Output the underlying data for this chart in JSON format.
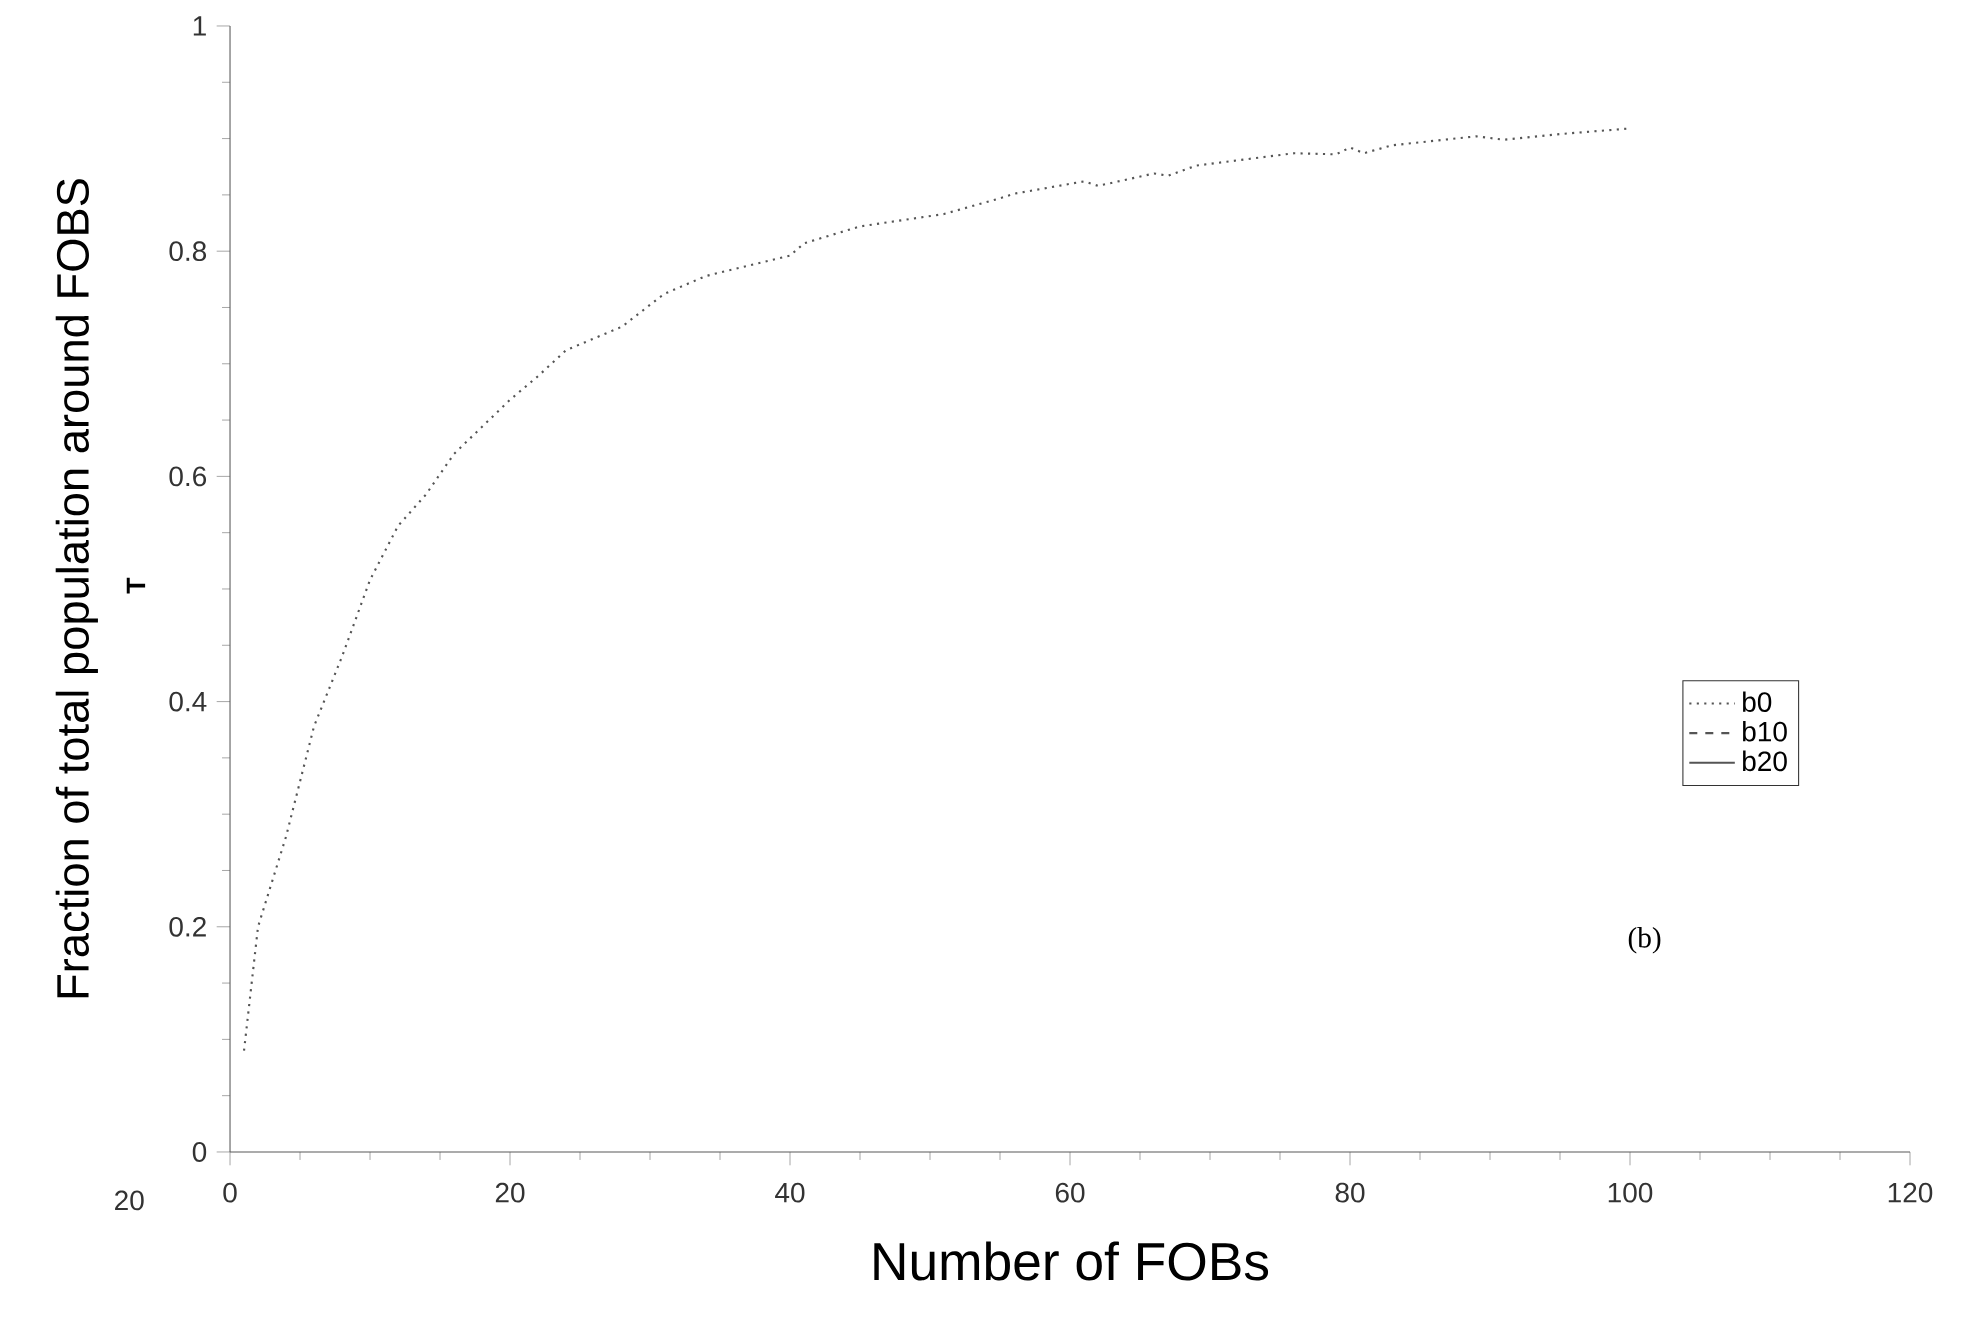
{
  "chart_data": {
    "type": "line",
    "xlabel": "Number of FOBs",
    "ylabel": "Fraction of total population around FOBS",
    "annotations": [
      "T",
      "20",
      "(b)"
    ],
    "x": [
      1,
      2,
      4,
      6,
      8,
      10,
      12,
      14,
      16,
      20,
      22,
      24,
      28,
      31,
      34,
      40,
      41,
      45,
      51,
      55,
      56,
      61,
      62,
      66,
      67,
      69,
      76,
      79,
      80,
      81,
      83,
      89,
      91,
      95,
      100
    ],
    "series": [
      {
        "name": "b0",
        "color": "#555555",
        "line_style": "dotted",
        "values": [
          0.09,
          0.2,
          0.28,
          0.378,
          0.44,
          0.508,
          0.556,
          0.584,
          0.62,
          0.668,
          0.689,
          0.712,
          0.733,
          0.762,
          0.778,
          0.796,
          0.807,
          0.822,
          0.833,
          0.847,
          0.851,
          0.862,
          0.858,
          0.869,
          0.867,
          0.876,
          0.887,
          0.886,
          0.892,
          0.887,
          0.894,
          0.902,
          0.899,
          0.904,
          0.909
        ]
      },
      {
        "name": "b10",
        "color": "#555555",
        "line_style": "dashed",
        "values": [
          null,
          null,
          null,
          null,
          null,
          null,
          null,
          null,
          null,
          null,
          null,
          null,
          null,
          null,
          null,
          null,
          null,
          null,
          null,
          null,
          null,
          null,
          null,
          null,
          null,
          null,
          null,
          null,
          null,
          null,
          null,
          null,
          null,
          null,
          null
        ]
      },
      {
        "name": "b20",
        "color": "#555555",
        "line_style": "solid",
        "values": [
          null,
          null,
          null,
          null,
          null,
          null,
          null,
          null,
          null,
          null,
          null,
          null,
          null,
          null,
          null,
          null,
          null,
          null,
          null,
          null,
          null,
          null,
          null,
          null,
          null,
          null,
          null,
          null,
          null,
          null,
          null,
          null,
          null,
          null,
          null
        ]
      }
    ],
    "xlim": [
      0,
      120
    ],
    "ylim": [
      0,
      1
    ],
    "xticks": [
      0,
      20,
      40,
      60,
      80,
      100,
      120
    ],
    "yticks": [
      0,
      0.2,
      0.4,
      0.6,
      0.8,
      1
    ],
    "grid": false,
    "legend": "right",
    "marker": "none"
  }
}
